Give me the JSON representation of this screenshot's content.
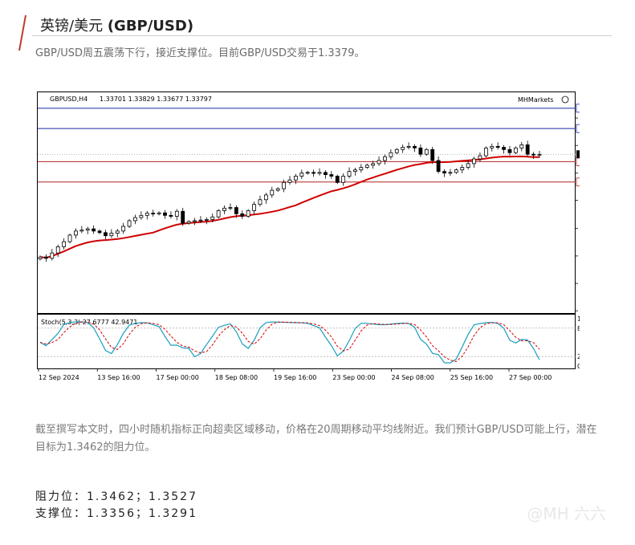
{
  "header": {
    "title_cn": "英镑/美元",
    "title_en": "(GBP/USD)",
    "accent_color": "#c0392b"
  },
  "intro": "GBP/USD周五震荡下行，接近支撑位。目前GBP/USD交易于1.3379。",
  "chart_header": {
    "symbol": "GBPUSD,H4",
    "ohlc": "1.33701 1.33829 1.33677 1.33797",
    "brand": "MHMarkets"
  },
  "chart_data": {
    "type": "candlestick",
    "timeframe": "H4",
    "ylim": [
      1.2876,
      1.3575
    ],
    "y_ticks": [
      "1.34955",
      "1.34080",
      "1.33205",
      "1.32330",
      "1.31430",
      "1.30555",
      "1.29680",
      "1.28805"
    ],
    "x_ticks": [
      "12 Sep 2024",
      "13 Sep 16:00",
      "17 Sep 00:00",
      "18 Sep 08:00",
      "19 Sep 16:00",
      "23 Sep 00:00",
      "24 Sep 08:00",
      "25 Sep 16:00",
      "27 Sep 00:00"
    ],
    "current_price": 1.33797,
    "current_price_label": "1.33797",
    "resistance_lines": [
      {
        "value": 1.35268,
        "label": "1.35268",
        "color": "#1b2aa8"
      },
      {
        "value": 1.3462,
        "label": "1.34620",
        "color": "#1b2aa8"
      }
    ],
    "support_lines": [
      {
        "value": 1.33563,
        "label": "1.33563",
        "color": "#b22222"
      },
      {
        "value": 1.32914,
        "label": "1.32914",
        "color": "#b22222"
      }
    ],
    "close_series": [
      1.3052,
      1.3048,
      1.3065,
      1.3085,
      1.3101,
      1.3122,
      1.3135,
      1.3138,
      1.3142,
      1.3135,
      1.313,
      1.312,
      1.3128,
      1.3135,
      1.315,
      1.3168,
      1.3178,
      1.3185,
      1.3192,
      1.319,
      1.3193,
      1.3185,
      1.3182,
      1.3198,
      1.316,
      1.3165,
      1.3168,
      1.317,
      1.3172,
      1.318,
      1.32,
      1.3208,
      1.321,
      1.319,
      1.3182,
      1.32,
      1.322,
      1.3235,
      1.325,
      1.3265,
      1.327,
      1.329,
      1.3298,
      1.331,
      1.332,
      1.3322,
      1.3319,
      1.3322,
      1.3315,
      1.331,
      1.329,
      1.331,
      1.3325,
      1.333,
      1.3338,
      1.3345,
      1.335,
      1.336,
      1.3372,
      1.3385,
      1.3395,
      1.3402,
      1.3405,
      1.34,
      1.338,
      1.3395,
      1.336,
      1.3325,
      1.332,
      1.3322,
      1.333,
      1.3338,
      1.335,
      1.3365,
      1.3375,
      1.34,
      1.3405,
      1.3402,
      1.3395,
      1.3385,
      1.34,
      1.341,
      1.338,
      1.3378,
      1.33797
    ],
    "ma_period": 20,
    "ma_color": "#d00000",
    "stoch": {
      "label": "Stoch(5,3,3) 27.6777 42.9471",
      "main": 27.6777,
      "signal": 42.9471,
      "levels": [
        80,
        20
      ],
      "scale_labels": [
        "100",
        "80",
        "20",
        "0"
      ],
      "main_color": "#1a9fbf",
      "signal_color": "#d00000"
    }
  },
  "analysis": "截至撰写本文时，四小时随机指标正向超卖区域移动，价格在20周期移动平均线附近。我们预计GBP/USD可能上行，潜在目标为1.3462的阻力位。",
  "levels": {
    "resistance": "阻力位：1.3462；1.3527",
    "support": "支撑位：1.3356；1.3291"
  },
  "watermark": "@MH 六六"
}
